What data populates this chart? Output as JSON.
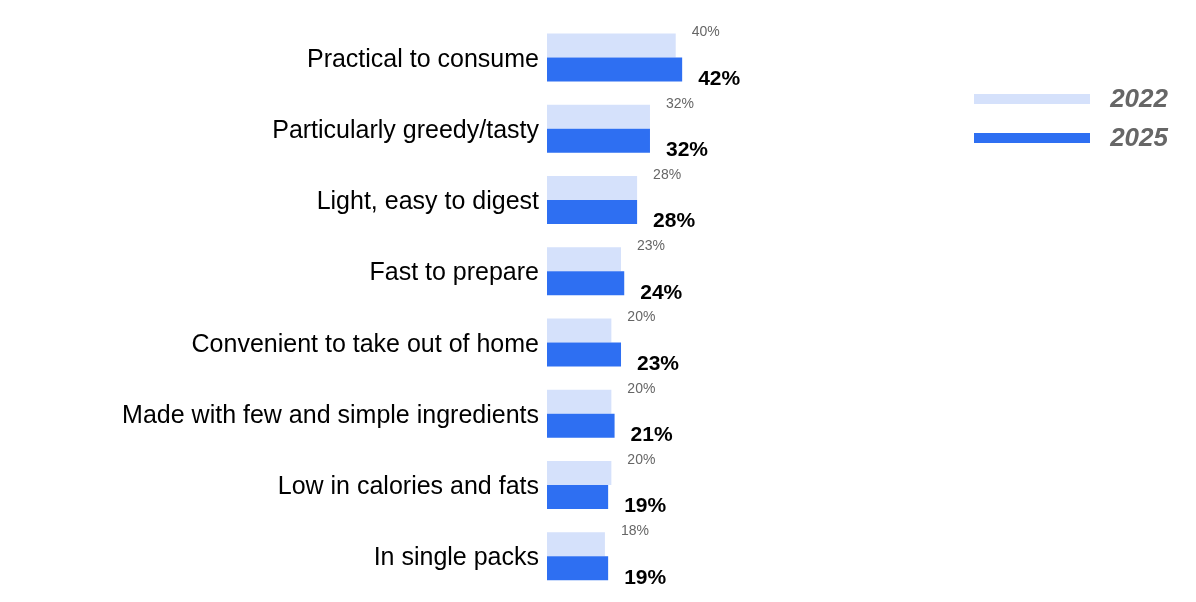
{
  "chart_data": {
    "type": "bar",
    "orientation": "horizontal",
    "categories": [
      "Practical to consume",
      "Particularly greedy/tasty",
      "Light, easy to digest",
      "Fast to prepare",
      "Convenient to take out of home",
      "Made with few and simple ingredients",
      "Low in calories and fats",
      "In single packs"
    ],
    "series": [
      {
        "name": "2022",
        "color": "#d5e1fb",
        "values": [
          40,
          32,
          28,
          23,
          20,
          20,
          20,
          18
        ],
        "value_labels": [
          "40%",
          "32%",
          "28%",
          "23%",
          "20%",
          "20%",
          "20%",
          "18%"
        ]
      },
      {
        "name": "2025",
        "color": "#2e6ff2",
        "values": [
          42,
          32,
          28,
          24,
          23,
          21,
          19,
          19
        ],
        "value_labels": [
          "42%",
          "32%",
          "28%",
          "24%",
          "23%",
          "21%",
          "19%",
          "19%"
        ]
      }
    ],
    "legend": "right"
  }
}
